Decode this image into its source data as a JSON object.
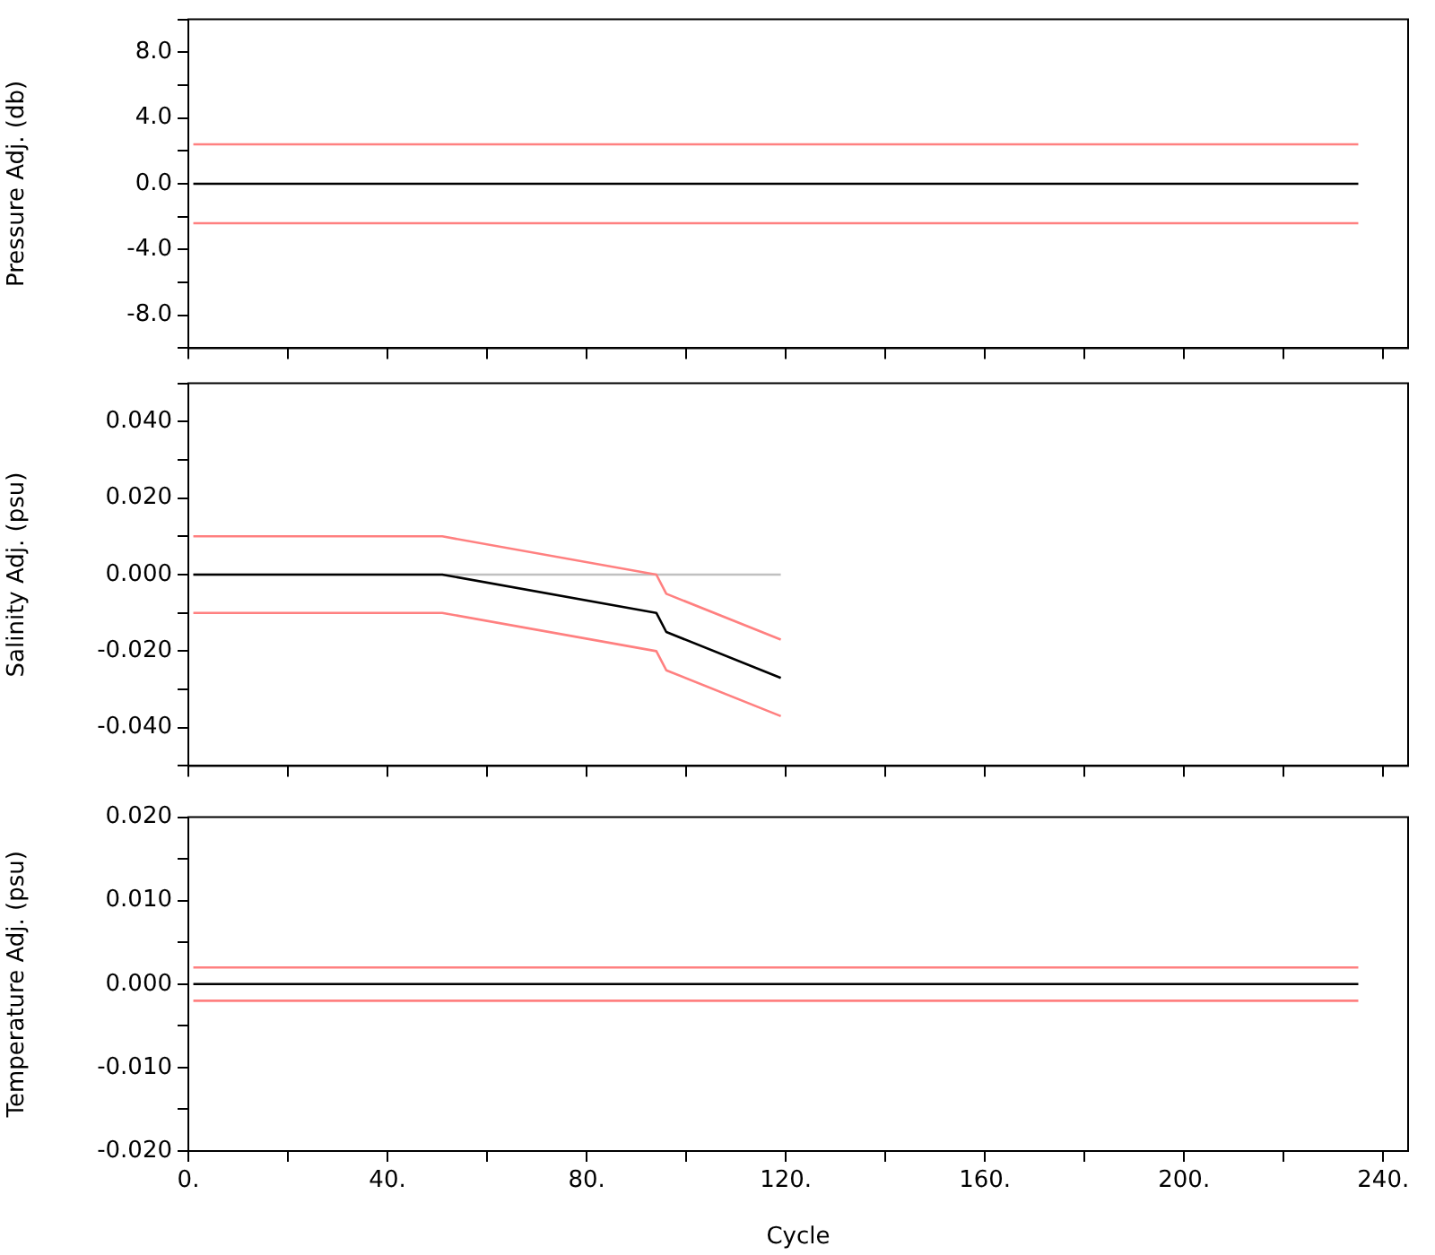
{
  "chart_data": [
    {
      "type": "line",
      "ylabel": "Pressure Adj. (db)",
      "xlim": [
        0,
        245
      ],
      "ylim": [
        -10,
        10
      ],
      "tick_labels": "y",
      "legend": false,
      "grid": false,
      "xticks": [
        {
          "value": 0,
          "label": null
        },
        {
          "value": 20,
          "label": null
        },
        {
          "value": 40,
          "label": null
        },
        {
          "value": 60,
          "label": null
        },
        {
          "value": 80,
          "label": null
        },
        {
          "value": 100,
          "label": null
        },
        {
          "value": 120,
          "label": null
        },
        {
          "value": 140,
          "label": null
        },
        {
          "value": 160,
          "label": null
        },
        {
          "value": 180,
          "label": null
        },
        {
          "value": 200,
          "label": null
        },
        {
          "value": 220,
          "label": null
        },
        {
          "value": 240,
          "label": null
        }
      ],
      "yticks": [
        {
          "value": -10,
          "label": null
        },
        {
          "value": -8,
          "label": "-8.0"
        },
        {
          "value": -6,
          "label": null
        },
        {
          "value": -4,
          "label": "-4.0"
        },
        {
          "value": -2,
          "label": null
        },
        {
          "value": 0,
          "label": "0.0"
        },
        {
          "value": 2,
          "label": null
        },
        {
          "value": 4,
          "label": "4.0"
        },
        {
          "value": 6,
          "label": null
        },
        {
          "value": 8,
          "label": "8.0"
        },
        {
          "value": 10,
          "label": null
        }
      ],
      "series": [
        {
          "color": "#ff8080",
          "x": [
            1,
            235
          ],
          "values": [
            2.4,
            2.4
          ]
        },
        {
          "color": "#ff8080",
          "x": [
            1,
            235
          ],
          "values": [
            -2.4,
            -2.4
          ]
        },
        {
          "color": "#000000",
          "x": [
            1,
            235
          ],
          "values": [
            0,
            0
          ]
        }
      ]
    },
    {
      "type": "line",
      "ylabel": "Salinity Adj. (psu)",
      "xlim": [
        0,
        245
      ],
      "ylim": [
        -0.05,
        0.05
      ],
      "tick_labels": "y",
      "legend": false,
      "grid": false,
      "xticks": [
        {
          "value": 0,
          "label": null
        },
        {
          "value": 20,
          "label": null
        },
        {
          "value": 40,
          "label": null
        },
        {
          "value": 60,
          "label": null
        },
        {
          "value": 80,
          "label": null
        },
        {
          "value": 100,
          "label": null
        },
        {
          "value": 120,
          "label": null
        },
        {
          "value": 140,
          "label": null
        },
        {
          "value": 160,
          "label": null
        },
        {
          "value": 180,
          "label": null
        },
        {
          "value": 200,
          "label": null
        },
        {
          "value": 220,
          "label": null
        },
        {
          "value": 240,
          "label": null
        }
      ],
      "yticks": [
        {
          "value": -0.05,
          "label": null
        },
        {
          "value": -0.04,
          "label": "-0.040"
        },
        {
          "value": -0.03,
          "label": null
        },
        {
          "value": -0.02,
          "label": "-0.020"
        },
        {
          "value": -0.01,
          "label": null
        },
        {
          "value": 0,
          "label": "0.000"
        },
        {
          "value": 0.01,
          "label": null
        },
        {
          "value": 0.02,
          "label": "0.020"
        },
        {
          "value": 0.03,
          "label": null
        },
        {
          "value": 0.04,
          "label": "0.040"
        },
        {
          "value": 0.05,
          "label": null
        }
      ],
      "series": [
        {
          "color": "#ff8080",
          "x": [
            1,
            51,
            94,
            96,
            119
          ],
          "values": [
            0.01,
            0.01,
            0,
            -0.005,
            -0.017
          ]
        },
        {
          "color": "#ff8080",
          "x": [
            1,
            51,
            94,
            96,
            119
          ],
          "values": [
            -0.01,
            -0.01,
            -0.02,
            -0.025,
            -0.037
          ]
        },
        {
          "color": "#000000",
          "x": [
            1,
            51,
            94,
            96,
            119
          ],
          "values": [
            0,
            0,
            -0.01,
            -0.015,
            -0.027
          ]
        },
        {
          "color": "#c0c0c0",
          "x": [
            1,
            119
          ],
          "values": [
            0,
            0
          ]
        }
      ]
    },
    {
      "type": "line",
      "ylabel": "Temperature Adj. (psu)",
      "xlabel": "Cycle",
      "xlim": [
        0,
        245
      ],
      "ylim": [
        -0.02,
        0.02
      ],
      "legend": false,
      "grid": false,
      "xticks": [
        {
          "value": 0,
          "label": "0."
        },
        {
          "value": 20,
          "label": null
        },
        {
          "value": 40,
          "label": "40."
        },
        {
          "value": 60,
          "label": null
        },
        {
          "value": 80,
          "label": "80."
        },
        {
          "value": 100,
          "label": null
        },
        {
          "value": 120,
          "label": "120."
        },
        {
          "value": 140,
          "label": null
        },
        {
          "value": 160,
          "label": "160."
        },
        {
          "value": 180,
          "label": null
        },
        {
          "value": 200,
          "label": "200."
        },
        {
          "value": 220,
          "label": null
        },
        {
          "value": 240,
          "label": "240."
        }
      ],
      "yticks": [
        {
          "value": -0.02,
          "label": "-0.020"
        },
        {
          "value": -0.015,
          "label": null
        },
        {
          "value": -0.01,
          "label": "-0.010"
        },
        {
          "value": -0.005,
          "label": null
        },
        {
          "value": 0,
          "label": "0.000"
        },
        {
          "value": 0.005,
          "label": null
        },
        {
          "value": 0.01,
          "label": "0.010"
        },
        {
          "value": 0.015,
          "label": null
        },
        {
          "value": 0.02,
          "label": "0.020"
        }
      ],
      "series": [
        {
          "color": "#ff8080",
          "x": [
            1,
            235
          ],
          "values": [
            0.002,
            0.002
          ]
        },
        {
          "color": "#ff8080",
          "x": [
            1,
            235
          ],
          "values": [
            -0.002,
            -0.002
          ]
        },
        {
          "color": "#000000",
          "x": [
            1,
            235
          ],
          "values": [
            0,
            0
          ]
        }
      ]
    }
  ]
}
